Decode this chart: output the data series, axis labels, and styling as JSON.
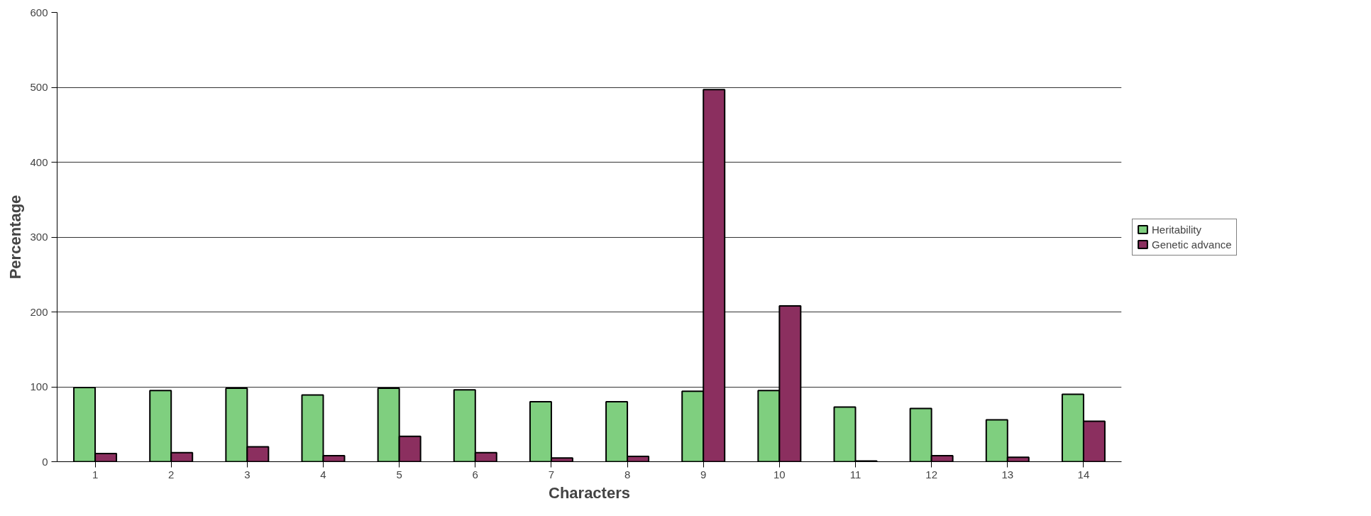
{
  "chart_data": {
    "type": "bar",
    "xlabel": "Characters",
    "ylabel": "Percentage",
    "categories": [
      "1",
      "2",
      "3",
      "4",
      "5",
      "6",
      "7",
      "8",
      "9",
      "10",
      "11",
      "12",
      "13",
      "14"
    ],
    "series": [
      {
        "name": "Heritability",
        "color": "#7fcf7f",
        "values": [
          99,
          95,
          98,
          89,
          98,
          96,
          80,
          80,
          94,
          95,
          73,
          71,
          56,
          90
        ]
      },
      {
        "name": "Genetic advance",
        "color": "#8b2f5f",
        "values": [
          11,
          12,
          20,
          8,
          34,
          12,
          5,
          7,
          497,
          208,
          1,
          8,
          6,
          54
        ]
      }
    ],
    "ylim": [
      0,
      600
    ],
    "yticks": [
      0,
      100,
      200,
      300,
      400,
      500,
      600
    ],
    "grid": "y",
    "legend": "right"
  }
}
